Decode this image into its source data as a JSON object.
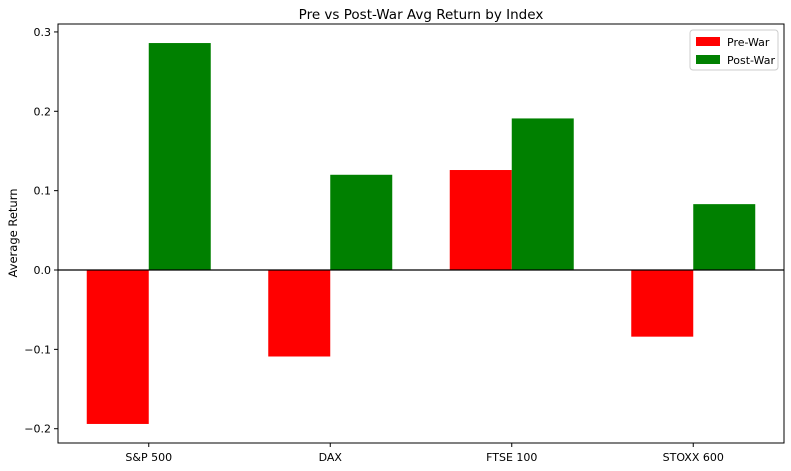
{
  "chart_data": {
    "type": "bar",
    "title": "Pre vs Post-War Avg Return by Index",
    "xlabel": "",
    "ylabel": "Average Return",
    "categories": [
      "S&P 500",
      "DAX",
      "FTSE 100",
      "STOXX 600"
    ],
    "series": [
      {
        "name": "Pre-War",
        "color": "#ff0000",
        "values": [
          -0.194,
          -0.109,
          0.126,
          -0.084
        ]
      },
      {
        "name": "Post-War",
        "color": "#008000",
        "values": [
          0.286,
          0.12,
          0.191,
          0.083
        ]
      }
    ],
    "ylim": [
      -0.218,
      0.31
    ],
    "yticks": [
      -0.2,
      -0.1,
      0.0,
      0.1,
      0.2,
      0.3
    ],
    "ytick_labels": [
      "−0.2",
      "−0.1",
      "0.0",
      "0.1",
      "0.2",
      "0.3"
    ],
    "zero_line": true,
    "grid": false,
    "legend_position": "top-right"
  }
}
